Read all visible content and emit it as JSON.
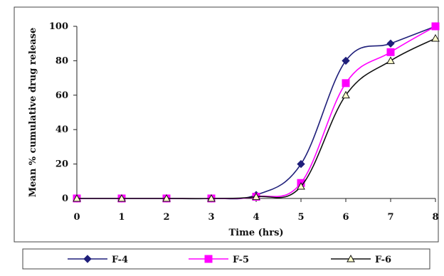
{
  "chart_data": {
    "type": "line",
    "title": "",
    "xlabel": "Time (hrs)",
    "ylabel": "Mean % cumulative drug release",
    "x": [
      0,
      1,
      2,
      3,
      4,
      5,
      6,
      7,
      8
    ],
    "xlim": [
      0,
      8
    ],
    "ylim": [
      0,
      100
    ],
    "x_ticks": [
      "0",
      "1",
      "2",
      "3",
      "4",
      "5",
      "6",
      "7",
      "8"
    ],
    "y_ticks": [
      "0",
      "20",
      "40",
      "60",
      "80",
      "100"
    ],
    "grid": false,
    "legend_position": "bottom",
    "series": [
      {
        "name": "F-4",
        "values": [
          0,
          0,
          0,
          0,
          2,
          20,
          80,
          90,
          100
        ],
        "color": "#1f1f7a",
        "marker": "diamond"
      },
      {
        "name": "F-5",
        "values": [
          0,
          0,
          0,
          0,
          1,
          9,
          67,
          85,
          100
        ],
        "color": "#ff00ff",
        "marker": "square"
      },
      {
        "name": "F-6",
        "values": [
          0,
          0,
          0,
          0,
          1,
          7,
          60,
          80,
          93
        ],
        "color": "#111111",
        "marker": "triangle"
      }
    ]
  }
}
